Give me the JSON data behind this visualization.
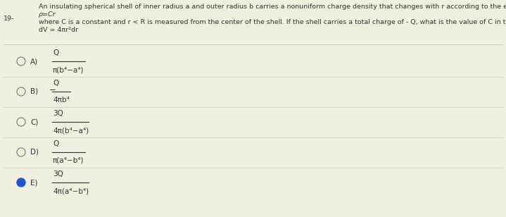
{
  "background_color": "#f0f0e0",
  "question_number": "19-",
  "header_lines": [
    "An insulating spherical shell of inner radius a and outer radius b carries a nonuniform charge density that changes with r according to the expression",
    "ρ=Cr",
    "where C is a constant and r < R is measured from the center of the shell. If the shell carries a total charge of - Q, what is the value of C in terms of a, b, and Q? Hint:",
    "dV = 4πr²dr"
  ],
  "options": [
    {
      "label": "A)",
      "prefix": "",
      "numerator": "Q",
      "denominator": "π(b⁴−a⁴)",
      "selected": false
    },
    {
      "label": "B)",
      "prefix": "−",
      "numerator": "Q",
      "denominator": "4πb⁴",
      "selected": false
    },
    {
      "label": "C)",
      "prefix": "",
      "numerator": "3Q",
      "denominator": "4π(b⁴−a⁴)",
      "selected": false
    },
    {
      "label": "D)",
      "prefix": "",
      "numerator": "Q",
      "denominator": "π(a⁴−b⁴)",
      "selected": false
    },
    {
      "label": "E)",
      "prefix": "",
      "numerator": "3Q",
      "denominator": "4π(a⁴−b⁴)",
      "selected": true
    }
  ],
  "separator_color": "#c8c8c0",
  "text_color": "#333333",
  "radio_edge_color": "#777777",
  "selected_fill_color": "#2255cc",
  "font_size_header": 6.8,
  "font_size_option": 7.5,
  "font_size_number": 7.5
}
